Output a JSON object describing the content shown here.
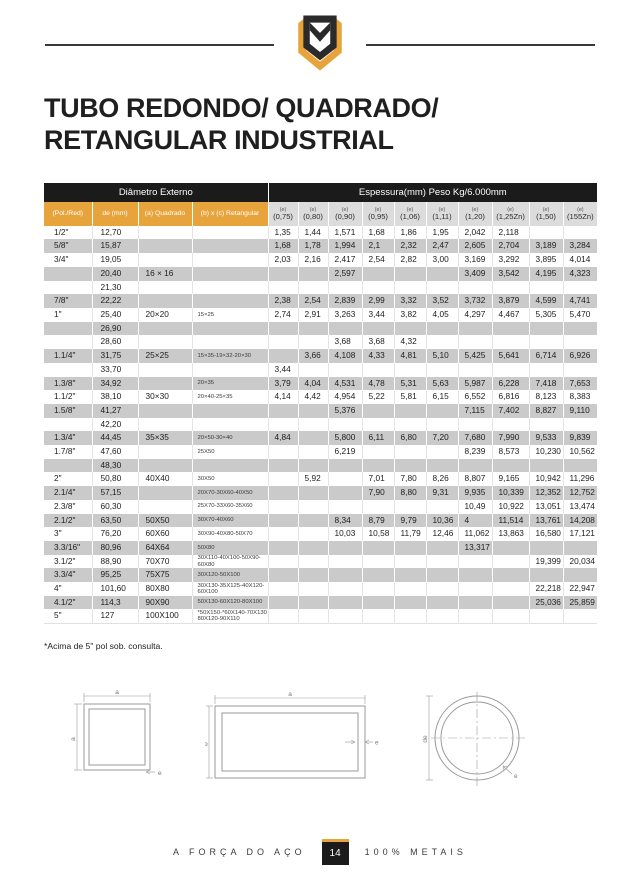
{
  "header": {
    "title_line1": "TUBO REDONDO/ QUADRADO/",
    "title_line2": "RETANGULAR INDUSTRIAL",
    "logo_icon": "metals-shield-logo"
  },
  "colors": {
    "accent": "#E8A43C",
    "header_bg": "#1B1B1B",
    "stripe": "#CACACA",
    "subheader_bg": "#DCDCDC"
  },
  "table": {
    "group_left": "Diâmetro Externo",
    "group_right": "Espessura(mm) Peso Kg/6.000mm",
    "left_cols": [
      "(Pol./Red)",
      "de (mm)",
      "(a) Quadrado",
      "(b) x (c) Retangular"
    ],
    "e_label": "(e)",
    "thickness_cols": [
      "(0,75)",
      "(0,80)",
      "(0,90)",
      "(0,95)",
      "(1,06)",
      "(1,11)",
      "(1,20)",
      "(1,25Zn)",
      "(1,50)",
      "(155Zn)"
    ],
    "rows": [
      {
        "pol": "1/2\"",
        "de": "12,70",
        "quad": "",
        "ret": "",
        "v": [
          "1,35",
          "1,44",
          "1,571",
          "1,68",
          "1,86",
          "1,95",
          "2,042",
          "2,118",
          "",
          ""
        ]
      },
      {
        "pol": "5/8\"",
        "de": "15,87",
        "quad": "",
        "ret": "",
        "v": [
          "1,68",
          "1,78",
          "1,994",
          "2,1",
          "2,32",
          "2,47",
          "2,605",
          "2,704",
          "3,189",
          "3,284"
        ]
      },
      {
        "pol": "3/4\"",
        "de": "19,05",
        "quad": "",
        "ret": "",
        "v": [
          "2,03",
          "2,16",
          "2,417",
          "2,54",
          "2,82",
          "3,00",
          "3,169",
          "3,292",
          "3,895",
          "4,014"
        ]
      },
      {
        "pol": "",
        "de": "20,40",
        "quad": "16 × 16",
        "ret": "",
        "v": [
          "",
          "",
          "2,597",
          "",
          "",
          "",
          "3,409",
          "3,542",
          "4,195",
          "4,323"
        ]
      },
      {
        "pol": "",
        "de": "21,30",
        "quad": "",
        "ret": "",
        "v": [
          "",
          "",
          "",
          "",
          "",
          "",
          "",
          "",
          "",
          ""
        ]
      },
      {
        "pol": "7/8\"",
        "de": "22,22",
        "quad": "",
        "ret": "",
        "v": [
          "2,38",
          "2,54",
          "2,839",
          "2,99",
          "3,32",
          "3,52",
          "3,732",
          "3,879",
          "4,599",
          "4,741"
        ]
      },
      {
        "pol": "1\"",
        "de": "25,40",
        "quad": "20×20",
        "ret": "15×25",
        "v": [
          "2,74",
          "2,91",
          "3,263",
          "3,44",
          "3,82",
          "4,05",
          "4,297",
          "4,467",
          "5,305",
          "5,470"
        ]
      },
      {
        "pol": "",
        "de": "26,90",
        "quad": "",
        "ret": "",
        "v": [
          "",
          "",
          "",
          "",
          "",
          "",
          "",
          "",
          "",
          ""
        ]
      },
      {
        "pol": "",
        "de": "28,60",
        "quad": "",
        "ret": "",
        "v": [
          "",
          "",
          "3,68",
          "3,68",
          "4,32",
          "",
          "",
          "",
          "",
          ""
        ]
      },
      {
        "pol": "1.1/4\"",
        "de": "31,75",
        "quad": "25×25",
        "ret": "15×35-19×32-20×30",
        "v": [
          "",
          "3,66",
          "4,108",
          "4,33",
          "4,81",
          "5,10",
          "5,425",
          "5,641",
          "6,714",
          "6,926"
        ]
      },
      {
        "pol": "",
        "de": "33,70",
        "quad": "",
        "ret": "",
        "v": [
          "3,44",
          "",
          "",
          "",
          "",
          "",
          "",
          "",
          "",
          ""
        ]
      },
      {
        "pol": "1.3/8\"",
        "de": "34,92",
        "quad": "",
        "ret": "20×35",
        "v": [
          "3,79",
          "4,04",
          "4,531",
          "4,78",
          "5,31",
          "5,63",
          "5,987",
          "6,228",
          "7,418",
          "7,653"
        ]
      },
      {
        "pol": "1.1/2\"",
        "de": "38,10",
        "quad": "30×30",
        "ret": "20×40-25×35",
        "v": [
          "4,14",
          "4,42",
          "4,954",
          "5,22",
          "5,81",
          "6,15",
          "6,552",
          "6,816",
          "8,123",
          "8,383"
        ]
      },
      {
        "pol": "1.5/8\"",
        "de": "41,27",
        "quad": "",
        "ret": "",
        "v": [
          "",
          "",
          "5,376",
          "",
          "",
          "",
          "7,115",
          "7,402",
          "8,827",
          "9,110"
        ]
      },
      {
        "pol": "",
        "de": "42,20",
        "quad": "",
        "ret": "",
        "v": [
          "",
          "",
          "",
          "",
          "",
          "",
          "",
          "",
          "",
          ""
        ]
      },
      {
        "pol": "1.3/4\"",
        "de": "44,45",
        "quad": "35×35",
        "ret": "20×50-30×40",
        "v": [
          "4,84",
          "",
          "5,800",
          "6,11",
          "6,80",
          "7,20",
          "7,680",
          "7,990",
          "9,533",
          "9,839"
        ]
      },
      {
        "pol": "1.7/8\"",
        "de": "47,60",
        "quad": "",
        "ret": "25X50",
        "v": [
          "",
          "",
          "6,219",
          "",
          "",
          "",
          "8,239",
          "8,573",
          "10,230",
          "10,562"
        ]
      },
      {
        "pol": "",
        "de": "48,30",
        "quad": "",
        "ret": "",
        "v": [
          "",
          "",
          "",
          "",
          "",
          "",
          "",
          "",
          "",
          ""
        ]
      },
      {
        "pol": "2\"",
        "de": "50,80",
        "quad": "40X40",
        "ret": "30X50",
        "v": [
          "",
          "5,92",
          "",
          "7,01",
          "7,80",
          "8,26",
          "8,807",
          "9,165",
          "10,942",
          "11,296"
        ]
      },
      {
        "pol": "2.1/4\"",
        "de": "57,15",
        "quad": "",
        "ret": "20X70-30X60-40X50",
        "v": [
          "",
          "",
          "",
          "7,90",
          "8,80",
          "9,31",
          "9,935",
          "10,339",
          "12,352",
          "12,752"
        ]
      },
      {
        "pol": "2.3/8\"",
        "de": "60,30",
        "quad": "",
        "ret": "25X70-33X60-35X60",
        "v": [
          "",
          "",
          "",
          "",
          "",
          "",
          "10,49",
          "10,922",
          "13,051",
          "13,474"
        ]
      },
      {
        "pol": "2.1/2\"",
        "de": "63,50",
        "quad": "50X50",
        "ret": "30X70-40X60",
        "v": [
          "",
          "",
          "8,34",
          "8,79",
          "9,79",
          "10,36",
          "4",
          "11,514",
          "13,761",
          "14,208"
        ]
      },
      {
        "pol": "3\"",
        "de": "76,20",
        "quad": "60X60",
        "ret": "30X90-40X80-50X70",
        "v": [
          "",
          "",
          "10,03",
          "10,58",
          "11,79",
          "12,46",
          "11,062",
          "13,863",
          "16,580",
          "17,121"
        ]
      },
      {
        "pol": "3.3/16\"",
        "de": "80,96",
        "quad": "64X64",
        "ret": "50X80",
        "v": [
          "",
          "",
          "",
          "",
          "",
          "",
          "13,317",
          "",
          "",
          ""
        ]
      },
      {
        "pol": "3.1/2\"",
        "de": "88,90",
        "quad": "70X70",
        "ret": "30X110-40X100-50X90-60X80",
        "v": [
          "",
          "",
          "",
          "",
          "",
          "",
          "",
          "",
          "19,399",
          "20,034"
        ]
      },
      {
        "pol": "3.3/4\"",
        "de": "95,25",
        "quad": "75X75",
        "ret": "30X120-50X100",
        "v": [
          "",
          "",
          "",
          "",
          "",
          "",
          "",
          "",
          "",
          ""
        ]
      },
      {
        "pol": "4\"",
        "de": "101,60",
        "quad": "80X80",
        "ret": "30X130-35X125-40X120-60X100",
        "v": [
          "",
          "",
          "",
          "",
          "",
          "",
          "",
          "",
          "22,218",
          "22,947"
        ]
      },
      {
        "pol": "4.1/2\"",
        "de": "114,3",
        "quad": "90X90",
        "ret": "50X130-60X120-80X100",
        "v": [
          "",
          "",
          "",
          "",
          "",
          "",
          "",
          "",
          "25,036",
          "25,859"
        ]
      },
      {
        "pol": "5\"",
        "de": "127",
        "quad": "100X100",
        "ret": "*50X150-*60X140-70X130\n80X120-90X110",
        "v": [
          "",
          "",
          "",
          "",
          "",
          "",
          "",
          "",
          "",
          ""
        ]
      }
    ]
  },
  "footnote": "*Acima de 5\" pol sob. consulta.",
  "diagrams": {
    "square": {
      "dim_top": "a",
      "dim_side": "a",
      "wall": "e"
    },
    "rect": {
      "dim_top": "a",
      "dim_side": "b",
      "wall": "e"
    },
    "round": {
      "diameter": "de",
      "wall": "e"
    }
  },
  "footer": {
    "left": "A FORÇA DO AÇO",
    "page": "14",
    "right": "100% METAIS"
  }
}
